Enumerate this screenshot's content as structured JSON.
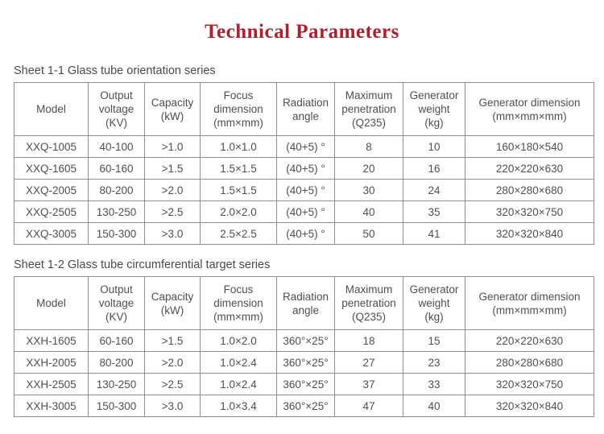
{
  "page": {
    "title": "Technical Parameters"
  },
  "colors": {
    "title": "#b01e2e",
    "border": "#8f8f8f",
    "text": "#4f4f4f"
  },
  "tables": [
    {
      "caption": "Sheet 1-1 Glass tube orientation series",
      "columns": [
        {
          "id": "model",
          "label": [
            "Model"
          ]
        },
        {
          "id": "output-voltage",
          "label": [
            "Output",
            "voltage",
            "(KV)"
          ]
        },
        {
          "id": "capacity",
          "label": [
            "Capacity",
            "(kW)"
          ]
        },
        {
          "id": "focus-dimension",
          "label": [
            "Focus",
            "dimension",
            "(mm×mm)"
          ]
        },
        {
          "id": "radiation-angle",
          "label": [
            "Radiation",
            "angle"
          ]
        },
        {
          "id": "max-penetration",
          "label": [
            "Maximum",
            "penetration",
            "(Q235)"
          ]
        },
        {
          "id": "generator-weight",
          "label": [
            "Generator",
            "weight",
            "(kg)"
          ]
        },
        {
          "id": "generator-dimension",
          "label": [
            "Generator dimension",
            "(mm×mm×mm)"
          ]
        }
      ],
      "rows": [
        [
          "XXQ-1005",
          "40-100",
          ">1.0",
          "1.0×1.0",
          "(40+5) °",
          "8",
          "10",
          "160×180×540"
        ],
        [
          "XXQ-1605",
          "60-160",
          ">1.5",
          "1.5×1.5",
          "(40+5) °",
          "20",
          "16",
          "220×220×630"
        ],
        [
          "XXQ-2005",
          "80-200",
          ">2.0",
          "1.5×1.5",
          "(40+5) °",
          "30",
          "24",
          "280×280×680"
        ],
        [
          "XXQ-2505",
          "130-250",
          ">2.5",
          "2.0×2.0",
          "(40+5) °",
          "40",
          "35",
          "320×320×750"
        ],
        [
          "XXQ-3005",
          "150-300",
          ">3.0",
          "2.5×2.5",
          "(40+5) °",
          "50",
          "41",
          "320×320×840"
        ]
      ]
    },
    {
      "caption": "Sheet 1-2 Glass tube circumferential target series",
      "columns": [
        {
          "id": "model",
          "label": [
            "Model"
          ]
        },
        {
          "id": "output-voltage",
          "label": [
            "Output",
            "voltage",
            "(KV)"
          ]
        },
        {
          "id": "capacity",
          "label": [
            "Capacity",
            "(kW)"
          ]
        },
        {
          "id": "focus-dimension",
          "label": [
            "Focus",
            "dimension",
            "(mm×mm)"
          ]
        },
        {
          "id": "radiation-angle",
          "label": [
            "Radiation",
            "angle"
          ]
        },
        {
          "id": "max-penetration",
          "label": [
            "Maximum",
            "penetration",
            "(Q235)"
          ]
        },
        {
          "id": "generator-weight",
          "label": [
            "Generator",
            "weight",
            "(kg)"
          ]
        },
        {
          "id": "generator-dimension",
          "label": [
            "Generator dimension",
            "(mm×mm×mm)"
          ]
        }
      ],
      "rows": [
        [
          "XXH-1605",
          "60-160",
          ">1.5",
          "1.0×2.0",
          "360°×25°",
          "18",
          "15",
          "220×220×630"
        ],
        [
          "XXH-2005",
          "80-200",
          ">2.0",
          "1.0×2.4",
          "360°×25°",
          "27",
          "23",
          "280×280×680"
        ],
        [
          "XXH-2505",
          "130-250",
          ">2.5",
          "1.0×2.4",
          "360°×25°",
          "37",
          "33",
          "320×320×750"
        ],
        [
          "XXH-3005",
          "150-300",
          ">3.0",
          "1.0×3.4",
          "360°×25°",
          "47",
          "40",
          "320×320×840"
        ]
      ]
    }
  ]
}
